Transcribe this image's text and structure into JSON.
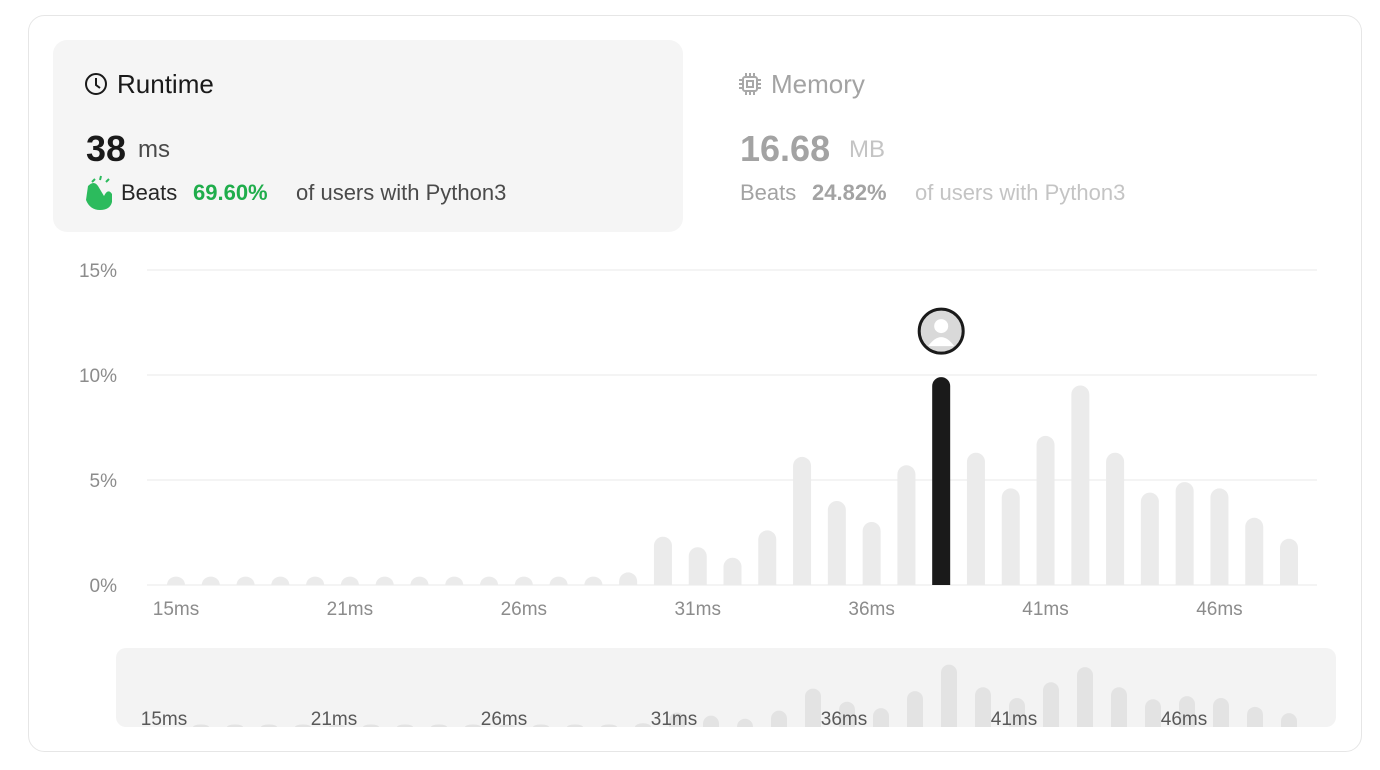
{
  "runtime_panel": {
    "title": "Runtime",
    "value": "38",
    "unit": "ms",
    "beats_prefix": "Beats",
    "beats": "69.60%",
    "beats_suffix": "of users with Python3"
  },
  "memory_panel": {
    "title": "Memory",
    "value": "16.68",
    "unit": "MB",
    "beats_prefix": "Beats",
    "beats": "24.82%",
    "beats_suffix": "of users with Python3"
  },
  "chart_data": {
    "type": "bar",
    "categories": [
      "15ms",
      null,
      null,
      null,
      null,
      "21ms",
      null,
      null,
      null,
      null,
      "26ms",
      null,
      null,
      null,
      null,
      "31ms",
      null,
      null,
      null,
      null,
      "36ms",
      null,
      null,
      null,
      null,
      "41ms",
      null,
      null,
      null,
      null,
      "46ms",
      null,
      null
    ],
    "values": [
      0.4,
      0.4,
      0.4,
      0.4,
      0.4,
      0.4,
      0.4,
      0.4,
      0.4,
      0.4,
      0.4,
      0.4,
      0.4,
      0.6,
      2.3,
      1.8,
      1.3,
      2.6,
      6.1,
      4.0,
      3.0,
      5.7,
      9.9,
      6.3,
      4.6,
      7.1,
      9.5,
      6.3,
      4.4,
      4.9,
      4.6,
      3.2,
      2.2
    ],
    "color": "#ebebeb",
    "highlight_color": "#1a1a1a",
    "highlight": 22,
    "ylim": [
      0,
      15
    ],
    "yticks": [
      {
        "value": 0,
        "label": "0%"
      },
      {
        "value": 5,
        "label": "5%"
      },
      {
        "value": 10,
        "label": "10%"
      },
      {
        "value": 15,
        "label": "15%"
      }
    ],
    "grid": true
  }
}
